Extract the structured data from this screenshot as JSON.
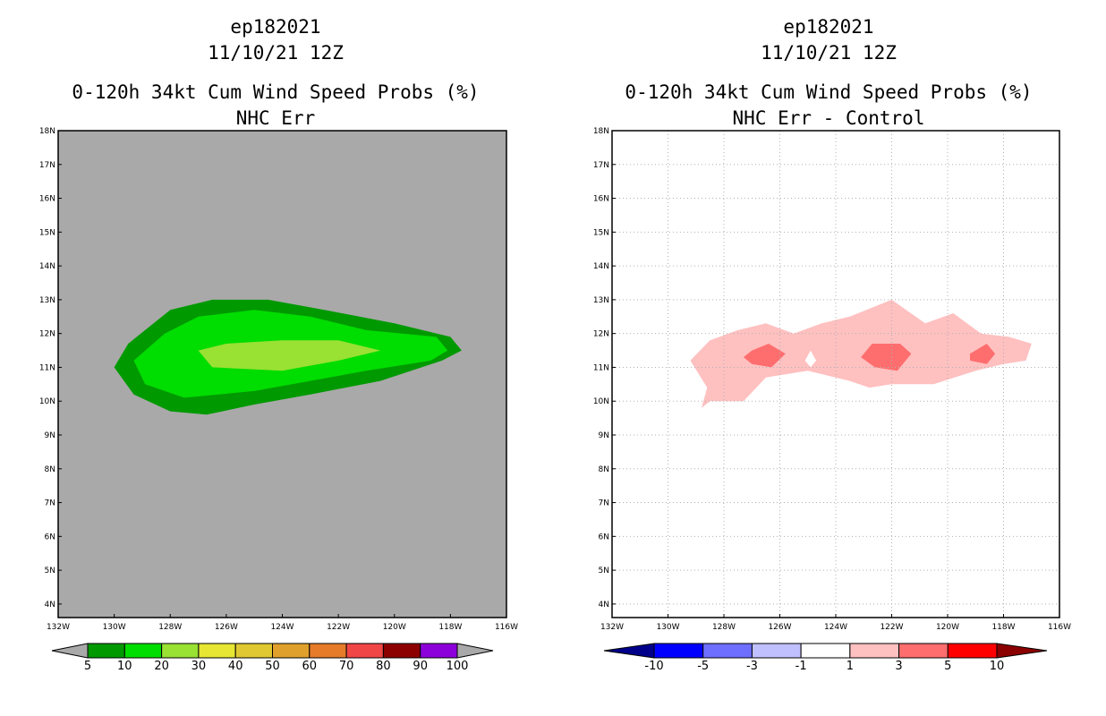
{
  "chart_data": [
    {
      "type": "filled-contour-map",
      "storm_id": "ep182021",
      "date": "11/10/21 12Z",
      "title": "0-120h 34kt Cum Wind Speed Probs (%)",
      "subtitle": "NHC Err",
      "background_color": "#a9a9a9",
      "grid": false,
      "lon_range": [
        -132,
        -116
      ],
      "lat_range": [
        3.6,
        18
      ],
      "x_ticks": [
        "132W",
        "130W",
        "128W",
        "126W",
        "124W",
        "122W",
        "120W",
        "118W",
        "116W"
      ],
      "y_ticks": [
        "4N",
        "5N",
        "6N",
        "7N",
        "8N",
        "9N",
        "10N",
        "11N",
        "12N",
        "13N",
        "14N",
        "15N",
        "16N",
        "17N",
        "18N"
      ],
      "contours": [
        {
          "level": 5,
          "color": "#009900",
          "polygon": [
            [
              -128.0,
              12.7
            ],
            [
              -126.5,
              13.0
            ],
            [
              -124.5,
              13.0
            ],
            [
              -122.5,
              12.7
            ],
            [
              -120.0,
              12.3
            ],
            [
              -118.0,
              11.9
            ],
            [
              -117.6,
              11.5
            ],
            [
              -118.3,
              11.2
            ],
            [
              -120.5,
              10.6
            ],
            [
              -123.0,
              10.2
            ],
            [
              -125.0,
              9.9
            ],
            [
              -126.7,
              9.6
            ],
            [
              -128.0,
              9.7
            ],
            [
              -129.3,
              10.2
            ],
            [
              -130.0,
              11.0
            ],
            [
              -129.5,
              11.7
            ]
          ]
        },
        {
          "level": 10,
          "color": "#00dd00",
          "polygon": [
            [
              -128.2,
              12.0
            ],
            [
              -127.0,
              12.5
            ],
            [
              -125.0,
              12.7
            ],
            [
              -123.0,
              12.5
            ],
            [
              -121.0,
              12.1
            ],
            [
              -118.5,
              11.9
            ],
            [
              -118.1,
              11.5
            ],
            [
              -118.7,
              11.2
            ],
            [
              -121.0,
              10.9
            ],
            [
              -123.0,
              10.6
            ],
            [
              -125.0,
              10.3
            ],
            [
              -127.5,
              10.1
            ],
            [
              -128.9,
              10.5
            ],
            [
              -129.3,
              11.2
            ]
          ]
        },
        {
          "level": 20,
          "color": "#99e133",
          "polygon": [
            [
              -127.0,
              11.5
            ],
            [
              -126.0,
              11.7
            ],
            [
              -124.0,
              11.8
            ],
            [
              -122.0,
              11.8
            ],
            [
              -120.5,
              11.5
            ],
            [
              -122.0,
              11.2
            ],
            [
              -124.0,
              10.9
            ],
            [
              -126.5,
              11.0
            ]
          ]
        }
      ],
      "colorbar": {
        "labels": [
          "5",
          "10",
          "20",
          "30",
          "40",
          "50",
          "60",
          "70",
          "80",
          "90",
          "100"
        ],
        "colors": [
          "#009900",
          "#00dd00",
          "#99e133",
          "#e6e633",
          "#e0c832",
          "#e0a12c",
          "#e67b2a",
          "#f04646",
          "#8c0000",
          "#8c00d9"
        ],
        "end_color": "#a9a9a9"
      }
    },
    {
      "type": "filled-contour-map",
      "storm_id": "ep182021",
      "date": "11/10/21 12Z",
      "title": "0-120h 34kt Cum Wind Speed Probs (%)",
      "subtitle": "NHC Err - Control",
      "background_color": "#ffffff",
      "grid": true,
      "lon_range": [
        -132,
        -116
      ],
      "lat_range": [
        3.6,
        18
      ],
      "x_ticks": [
        "132W",
        "130W",
        "128W",
        "126W",
        "124W",
        "122W",
        "120W",
        "118W",
        "116W"
      ],
      "y_ticks": [
        "4N",
        "5N",
        "6N",
        "7N",
        "8N",
        "9N",
        "10N",
        "11N",
        "12N",
        "13N",
        "14N",
        "15N",
        "16N",
        "17N",
        "18N"
      ],
      "contours": [
        {
          "level": 1,
          "color": "#ffc0c0",
          "polygon": [
            [
              -129.2,
              11.2
            ],
            [
              -128.5,
              11.8
            ],
            [
              -127.5,
              12.1
            ],
            [
              -126.5,
              12.3
            ],
            [
              -125.5,
              12.0
            ],
            [
              -124.5,
              12.3
            ],
            [
              -123.5,
              12.5
            ],
            [
              -122.0,
              13.0
            ],
            [
              -120.8,
              12.3
            ],
            [
              -119.8,
              12.6
            ],
            [
              -118.8,
              12.0
            ],
            [
              -117.8,
              11.9
            ],
            [
              -117.0,
              11.7
            ],
            [
              -117.2,
              11.2
            ],
            [
              -118.0,
              11.1
            ],
            [
              -119.0,
              10.9
            ],
            [
              -120.5,
              10.5
            ],
            [
              -122.0,
              10.5
            ],
            [
              -122.8,
              10.4
            ],
            [
              -123.5,
              10.6
            ],
            [
              -125.0,
              10.9
            ],
            [
              -126.5,
              10.7
            ],
            [
              -127.3,
              10.0
            ],
            [
              -128.5,
              10.0
            ],
            [
              -128.8,
              9.8
            ],
            [
              -128.6,
              10.4
            ]
          ]
        },
        {
          "level": 3,
          "color": "#ff6e6e",
          "polygon": [
            [
              -127.0,
              11.5
            ],
            [
              -126.4,
              11.7
            ],
            [
              -125.8,
              11.4
            ],
            [
              -126.3,
              11.0
            ],
            [
              -127.0,
              11.1
            ],
            [
              -127.3,
              11.3
            ]
          ]
        },
        {
          "level": 3,
          "color": "#ff6e6e",
          "polygon": [
            [
              -122.7,
              11.7
            ],
            [
              -121.7,
              11.7
            ],
            [
              -121.3,
              11.4
            ],
            [
              -121.8,
              10.9
            ],
            [
              -122.6,
              11.0
            ],
            [
              -123.1,
              11.3
            ]
          ]
        },
        {
          "level": 3,
          "color": "#ff6e6e",
          "polygon": [
            [
              -119.2,
              11.4
            ],
            [
              -118.6,
              11.7
            ],
            [
              -118.3,
              11.4
            ],
            [
              -118.6,
              11.1
            ],
            [
              -119.2,
              11.2
            ]
          ]
        },
        {
          "level": 0,
          "color": "#ffffff",
          "polygon": [
            [
              -124.9,
              11.5
            ],
            [
              -124.7,
              11.2
            ],
            [
              -124.9,
              11.0
            ],
            [
              -125.1,
              11.2
            ]
          ]
        }
      ],
      "colorbar": {
        "labels": [
          "-10",
          "-5",
          "-3",
          "-1",
          "1",
          "3",
          "5",
          "10"
        ],
        "colors": [
          "#0000ff",
          "#6e6eff",
          "#c0c0ff",
          "#ffffff",
          "#ffc0c0",
          "#ff6e6e",
          "#ff0000"
        ],
        "start_color": "#00008b",
        "end_color": "#8b0000"
      }
    }
  ]
}
